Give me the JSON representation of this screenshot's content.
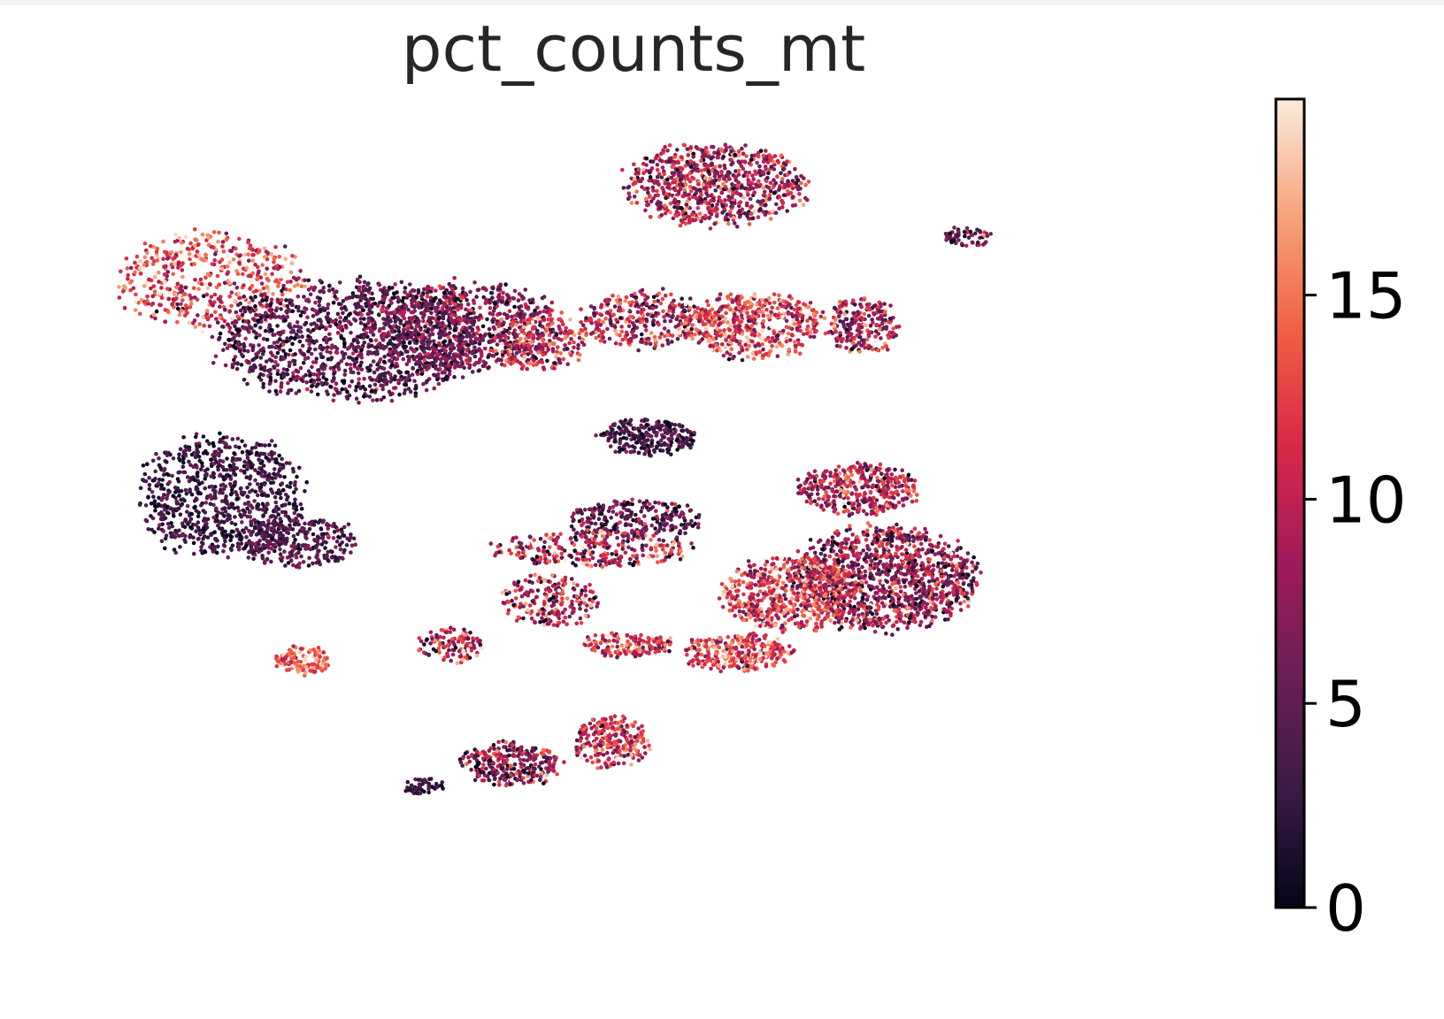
{
  "chart_data": {
    "type": "scatter",
    "title": "pct_counts_mt",
    "xlabel": "",
    "ylabel": "",
    "axes_visible": false,
    "grid": false,
    "colormap": [
      "#03051a",
      "#3b1a45",
      "#6a1f56",
      "#a11a5b",
      "#d92847",
      "#f06043",
      "#f6a47c",
      "#faebdd"
    ],
    "colorbar": {
      "range": [
        0,
        19.8
      ],
      "ticks": [
        0,
        5,
        10,
        15
      ],
      "tick_labels": [
        "0",
        "5",
        "10",
        "15"
      ],
      "position": "right"
    },
    "clusters": [
      {
        "x": 13.5,
        "y": 80,
        "spread": [
          8.5,
          6.5
        ],
        "n": 500,
        "mean": 12.5,
        "sd": 4.0
      },
      {
        "x": 26.5,
        "y": 72,
        "spread": [
          12.5,
          8.0
        ],
        "n": 1300,
        "mean": 4.5,
        "sd": 2.8
      },
      {
        "x": 36.5,
        "y": 74,
        "spread": [
          8.5,
          6.0
        ],
        "n": 700,
        "mean": 6.0,
        "sd": 3.5
      },
      {
        "x": 43.5,
        "y": 72,
        "spread": [
          4.5,
          4.0
        ],
        "n": 250,
        "mean": 11.0,
        "sd": 4.0
      },
      {
        "x": 14.5,
        "y": 51,
        "spread": [
          7.5,
          8.5
        ],
        "n": 800,
        "mean": 3.0,
        "sd": 2.0
      },
      {
        "x": 21.5,
        "y": 45,
        "spread": [
          5.5,
          3.5
        ],
        "n": 300,
        "mean": 4.0,
        "sd": 2.2
      },
      {
        "x": 22.0,
        "y": 29,
        "spread": [
          2.5,
          2.0
        ],
        "n": 120,
        "mean": 14.0,
        "sd": 3.0
      },
      {
        "x": 59.5,
        "y": 93,
        "spread": [
          8.5,
          5.5
        ],
        "n": 800,
        "mean": 9.0,
        "sd": 4.0
      },
      {
        "x": 53.0,
        "y": 75,
        "spread": [
          5.5,
          4.0
        ],
        "n": 300,
        "mean": 9.0,
        "sd": 4.5
      },
      {
        "x": 63.0,
        "y": 74,
        "spread": [
          6.5,
          4.5
        ],
        "n": 500,
        "mean": 12.0,
        "sd": 4.0
      },
      {
        "x": 73.0,
        "y": 74,
        "spread": [
          3.2,
          4.0
        ],
        "n": 220,
        "mean": 9.0,
        "sd": 4.0
      },
      {
        "x": 82.5,
        "y": 86,
        "spread": [
          2.2,
          1.4
        ],
        "n": 60,
        "mean": 6.0,
        "sd": 4.0
      },
      {
        "x": 53.5,
        "y": 59,
        "spread": [
          4.5,
          2.5
        ],
        "n": 250,
        "mean": 3.5,
        "sd": 2.5
      },
      {
        "x": 52.0,
        "y": 48,
        "spread": [
          6.5,
          2.5
        ],
        "n": 250,
        "mean": 5.0,
        "sd": 3.5
      },
      {
        "x": 44.5,
        "y": 37,
        "spread": [
          4.5,
          3.5
        ],
        "n": 220,
        "mean": 10.0,
        "sd": 5.0
      },
      {
        "x": 51.5,
        "y": 31,
        "spread": [
          4.5,
          1.6
        ],
        "n": 150,
        "mean": 11.0,
        "sd": 4.0
      },
      {
        "x": 35.5,
        "y": 31,
        "spread": [
          3.0,
          2.5
        ],
        "n": 120,
        "mean": 10.0,
        "sd": 5.0
      },
      {
        "x": 41.0,
        "y": 15,
        "spread": [
          4.5,
          3.0
        ],
        "n": 300,
        "mean": 7.0,
        "sd": 5.0
      },
      {
        "x": 50.0,
        "y": 18,
        "spread": [
          3.5,
          3.5
        ],
        "n": 250,
        "mean": 11.0,
        "sd": 4.0
      },
      {
        "x": 33.0,
        "y": 12,
        "spread": [
          1.8,
          1.2
        ],
        "n": 50,
        "mean": 2.5,
        "sd": 1.5
      },
      {
        "x": 72.5,
        "y": 52,
        "spread": [
          5.5,
          3.5
        ],
        "n": 400,
        "mean": 9.0,
        "sd": 4.0
      },
      {
        "x": 75.0,
        "y": 40,
        "spread": [
          8.5,
          7.0
        ],
        "n": 1200,
        "mean": 7.5,
        "sd": 4.5
      },
      {
        "x": 66.5,
        "y": 38,
        "spread": [
          6.5,
          5.0
        ],
        "n": 600,
        "mean": 12.0,
        "sd": 4.0
      },
      {
        "x": 61.5,
        "y": 30,
        "spread": [
          5.0,
          2.5
        ],
        "n": 300,
        "mean": 12.5,
        "sd": 4.0
      },
      {
        "x": 48.5,
        "y": 44,
        "spread": [
          9.0,
          2.5
        ],
        "n": 300,
        "mean": 9.0,
        "sd": 5.0
      }
    ]
  }
}
